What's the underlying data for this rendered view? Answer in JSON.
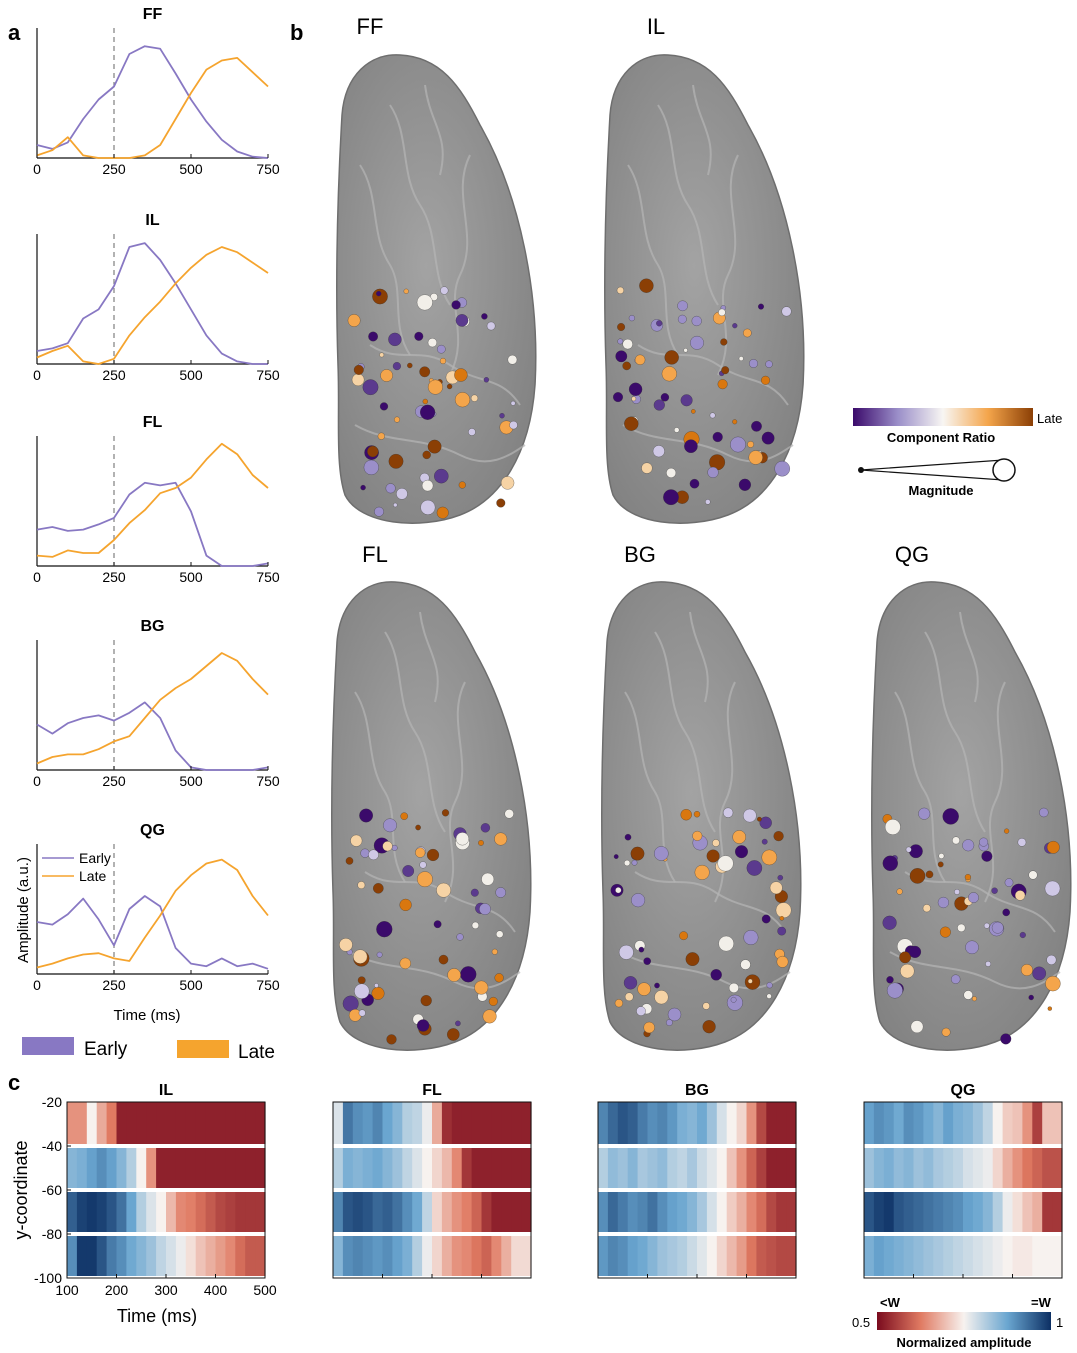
{
  "panel_labels": {
    "a": "a",
    "b": "b",
    "c": "c"
  },
  "panel_a": {
    "xticks": [
      "0",
      "250",
      "500",
      "750"
    ],
    "ylabel": "Amplitude (a.u.)",
    "xlabel": "Time (ms)",
    "legend_inset": [
      "Early",
      "Late"
    ]
  },
  "legend_main": {
    "early": "Early",
    "late": "Late"
  },
  "panel_b": {
    "titles": [
      "FF",
      "IL",
      "FL",
      "BG",
      "QG"
    ],
    "ratio_end_label": "Late",
    "ratio_label": "Component Ratio",
    "magnitude_label": "Magnitude"
  },
  "panel_c": {
    "ylabel": "y-coordinate",
    "xlabel": "Time (ms)",
    "yticks": [
      "-20",
      "-40",
      "-60",
      "-80",
      "-100"
    ],
    "xticks": [
      "100",
      "200",
      "300",
      "400",
      "500"
    ],
    "cbar_left_top": "<W",
    "cbar_right_top": "=W",
    "cbar_min": "0.5",
    "cbar_max": "1",
    "cbar_label": "Normalized amplitude"
  },
  "colors": {
    "early": "#8878c3",
    "late": "#f5a42e",
    "heat_low": "#7a0b1e",
    "heat_mid": "#f7f2ef",
    "heat_high": "#0c2f63",
    "brain": "#8d8d8d"
  },
  "chart_data": [
    {
      "type": "line",
      "title": "FF",
      "xlim": [
        0,
        750
      ],
      "x": [
        0,
        50,
        100,
        150,
        200,
        250,
        300,
        350,
        400,
        450,
        500,
        550,
        600,
        650,
        700,
        750
      ],
      "series": [
        {
          "name": "Early",
          "values": [
            0.1,
            0.07,
            0.12,
            0.3,
            0.45,
            0.55,
            0.8,
            0.86,
            0.84,
            0.65,
            0.45,
            0.28,
            0.14,
            0.05,
            0.01,
            0.0
          ]
        },
        {
          "name": "Late",
          "values": [
            0.02,
            0.06,
            0.16,
            0.02,
            0.0,
            0.0,
            0.0,
            0.02,
            0.1,
            0.3,
            0.5,
            0.68,
            0.75,
            0.77,
            0.66,
            0.55
          ]
        }
      ]
    },
    {
      "type": "line",
      "title": "IL",
      "xlim": [
        0,
        750
      ],
      "x": [
        0,
        50,
        100,
        150,
        200,
        250,
        300,
        350,
        400,
        450,
        500,
        550,
        600,
        650,
        700,
        750
      ],
      "series": [
        {
          "name": "Early",
          "values": [
            0.1,
            0.12,
            0.16,
            0.35,
            0.42,
            0.6,
            0.9,
            0.93,
            0.8,
            0.62,
            0.42,
            0.22,
            0.08,
            0.02,
            0.0,
            0.0
          ]
        },
        {
          "name": "Late",
          "values": [
            0.05,
            0.1,
            0.14,
            0.02,
            0.0,
            0.04,
            0.22,
            0.36,
            0.48,
            0.62,
            0.74,
            0.84,
            0.9,
            0.86,
            0.78,
            0.7
          ]
        }
      ]
    },
    {
      "type": "line",
      "title": "FL",
      "xlim": [
        0,
        750
      ],
      "x": [
        0,
        50,
        100,
        150,
        200,
        250,
        300,
        350,
        400,
        450,
        500,
        550,
        600,
        650,
        700,
        750
      ],
      "series": [
        {
          "name": "Early",
          "values": [
            0.28,
            0.3,
            0.27,
            0.28,
            0.32,
            0.37,
            0.55,
            0.64,
            0.62,
            0.64,
            0.42,
            0.08,
            0.0,
            0.0,
            0.0,
            0.02
          ]
        },
        {
          "name": "Late",
          "values": [
            0.08,
            0.07,
            0.12,
            0.1,
            0.1,
            0.2,
            0.33,
            0.43,
            0.56,
            0.6,
            0.68,
            0.82,
            0.94,
            0.86,
            0.7,
            0.6
          ]
        }
      ]
    },
    {
      "type": "line",
      "title": "BG",
      "xlim": [
        0,
        750
      ],
      "x": [
        0,
        50,
        100,
        150,
        200,
        250,
        300,
        350,
        400,
        450,
        500,
        550,
        600,
        650,
        700,
        750
      ],
      "series": [
        {
          "name": "Early",
          "values": [
            0.35,
            0.28,
            0.36,
            0.4,
            0.42,
            0.38,
            0.44,
            0.52,
            0.4,
            0.15,
            0.02,
            0.0,
            0.0,
            0.0,
            0.0,
            0.02
          ]
        },
        {
          "name": "Late",
          "values": [
            0.05,
            0.1,
            0.12,
            0.12,
            0.16,
            0.22,
            0.26,
            0.4,
            0.54,
            0.63,
            0.7,
            0.8,
            0.9,
            0.84,
            0.7,
            0.58
          ]
        }
      ]
    },
    {
      "type": "line",
      "title": "QG",
      "xlim": [
        0,
        750
      ],
      "x": [
        0,
        50,
        100,
        150,
        200,
        250,
        300,
        350,
        400,
        450,
        500,
        550,
        600,
        650,
        700,
        750
      ],
      "series": [
        {
          "name": "Early",
          "values": [
            0.4,
            0.38,
            0.46,
            0.58,
            0.42,
            0.22,
            0.5,
            0.6,
            0.52,
            0.2,
            0.08,
            0.06,
            0.12,
            0.06,
            0.08,
            0.04
          ]
        },
        {
          "name": "Late",
          "values": [
            0.05,
            0.08,
            0.12,
            0.15,
            0.16,
            0.12,
            0.1,
            0.28,
            0.45,
            0.64,
            0.76,
            0.85,
            0.88,
            0.8,
            0.6,
            0.45
          ]
        }
      ]
    }
  ],
  "heatmaps": [
    {
      "title": "IL",
      "bands": [
        [
          0.3,
          0.3,
          0.5,
          0.35,
          0.25,
          0.05,
          0.05,
          0.05,
          0.05,
          0.05,
          0.05,
          0.05,
          0.05,
          0.05,
          0.05,
          0.05,
          0.05,
          0.05,
          0.05,
          0.05
        ],
        [
          0.7,
          0.72,
          0.76,
          0.8,
          0.76,
          0.7,
          0.62,
          0.5,
          0.3,
          0.05,
          0.05,
          0.05,
          0.05,
          0.05,
          0.05,
          0.05,
          0.05,
          0.05,
          0.05,
          0.05
        ],
        [
          0.9,
          0.96,
          0.98,
          0.96,
          0.92,
          0.86,
          0.75,
          0.62,
          0.55,
          0.5,
          0.38,
          0.28,
          0.26,
          0.22,
          0.18,
          0.14,
          0.12,
          0.1,
          0.1,
          0.1
        ],
        [
          0.8,
          0.98,
          0.98,
          0.92,
          0.84,
          0.8,
          0.74,
          0.7,
          0.66,
          0.6,
          0.56,
          0.52,
          0.46,
          0.4,
          0.36,
          0.32,
          0.28,
          0.22,
          0.18,
          0.18
        ]
      ]
    },
    {
      "title": "FL",
      "bands": [
        [
          0.55,
          0.85,
          0.8,
          0.78,
          0.82,
          0.75,
          0.7,
          0.62,
          0.6,
          0.52,
          0.35,
          0.08,
          0.05,
          0.05,
          0.05,
          0.05,
          0.05,
          0.05,
          0.05,
          0.05
        ],
        [
          0.62,
          0.72,
          0.7,
          0.72,
          0.74,
          0.7,
          0.66,
          0.6,
          0.55,
          0.5,
          0.44,
          0.38,
          0.28,
          0.1,
          0.05,
          0.05,
          0.05,
          0.05,
          0.05,
          0.05
        ],
        [
          0.82,
          0.92,
          0.94,
          0.92,
          0.88,
          0.9,
          0.86,
          0.8,
          0.74,
          0.6,
          0.44,
          0.36,
          0.3,
          0.26,
          0.2,
          0.1,
          0.05,
          0.05,
          0.05,
          0.05
        ],
        [
          0.7,
          0.8,
          0.82,
          0.8,
          0.78,
          0.8,
          0.76,
          0.72,
          0.62,
          0.52,
          0.44,
          0.36,
          0.3,
          0.28,
          0.24,
          0.2,
          0.28,
          0.36,
          0.45,
          0.45
        ]
      ]
    },
    {
      "title": "BG",
      "bands": [
        [
          0.82,
          0.88,
          0.92,
          0.9,
          0.84,
          0.8,
          0.82,
          0.78,
          0.72,
          0.7,
          0.74,
          0.66,
          0.56,
          0.5,
          0.44,
          0.3,
          0.14,
          0.05,
          0.05,
          0.05
        ],
        [
          0.62,
          0.68,
          0.66,
          0.7,
          0.64,
          0.66,
          0.68,
          0.62,
          0.6,
          0.64,
          0.58,
          0.54,
          0.5,
          0.4,
          0.3,
          0.2,
          0.12,
          0.05,
          0.05,
          0.05
        ],
        [
          0.8,
          0.88,
          0.84,
          0.8,
          0.82,
          0.86,
          0.8,
          0.76,
          0.74,
          0.7,
          0.64,
          0.56,
          0.5,
          0.42,
          0.36,
          0.28,
          0.22,
          0.14,
          0.1,
          0.1
        ],
        [
          0.78,
          0.82,
          0.8,
          0.76,
          0.74,
          0.7,
          0.66,
          0.64,
          0.62,
          0.58,
          0.54,
          0.5,
          0.44,
          0.38,
          0.32,
          0.24,
          0.18,
          0.16,
          0.14,
          0.14
        ]
      ]
    },
    {
      "title": "QG",
      "bands": [
        [
          0.76,
          0.8,
          0.78,
          0.74,
          0.8,
          0.78,
          0.74,
          0.7,
          0.76,
          0.72,
          0.7,
          0.66,
          0.6,
          0.5,
          0.42,
          0.4,
          0.3,
          0.12,
          0.4,
          0.4
        ],
        [
          0.66,
          0.7,
          0.72,
          0.68,
          0.7,
          0.66,
          0.68,
          0.64,
          0.62,
          0.6,
          0.56,
          0.54,
          0.52,
          0.44,
          0.36,
          0.3,
          0.24,
          0.2,
          0.16,
          0.16
        ],
        [
          0.92,
          0.96,
          0.98,
          0.92,
          0.9,
          0.88,
          0.86,
          0.84,
          0.82,
          0.8,
          0.76,
          0.74,
          0.7,
          0.62,
          0.52,
          0.46,
          0.4,
          0.36,
          0.1,
          0.1
        ],
        [
          0.72,
          0.76,
          0.74,
          0.72,
          0.7,
          0.68,
          0.66,
          0.64,
          0.62,
          0.6,
          0.58,
          0.56,
          0.54,
          0.52,
          0.5,
          0.48,
          0.48,
          0.5,
          0.5,
          0.5
        ]
      ]
    }
  ]
}
